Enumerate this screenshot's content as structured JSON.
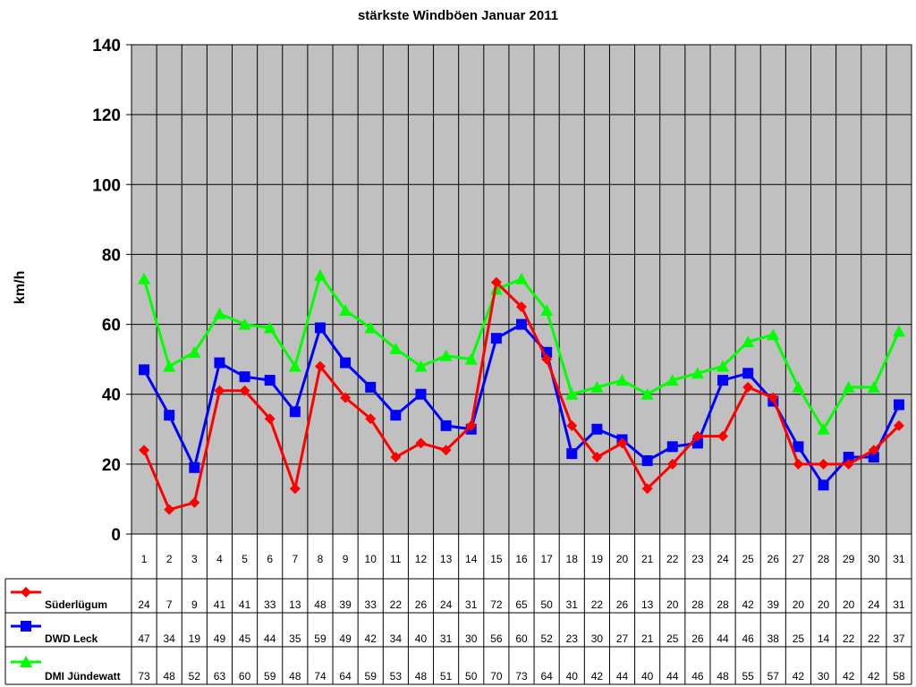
{
  "chart_data": {
    "type": "line",
    "title": "stärkste Windböen Januar 2011",
    "ylabel": "km/h",
    "xlabel": "",
    "ylim": [
      0,
      140
    ],
    "yticks": [
      0,
      20,
      40,
      60,
      80,
      100,
      120,
      140
    ],
    "grid": true,
    "legend": "bottom data table",
    "categories": [
      "1",
      "2",
      "3",
      "4",
      "5",
      "6",
      "7",
      "8",
      "9",
      "10",
      "11",
      "12",
      "13",
      "14",
      "15",
      "16",
      "17",
      "18",
      "19",
      "20",
      "21",
      "22",
      "23",
      "24",
      "25",
      "26",
      "27",
      "28",
      "29",
      "30",
      "31"
    ],
    "series": [
      {
        "name": "Süderlügum",
        "color": "#ff0000",
        "marker": "diamond",
        "values": [
          24,
          7,
          9,
          41,
          41,
          33,
          13,
          48,
          39,
          33,
          22,
          26,
          24,
          31,
          72,
          65,
          50,
          31,
          22,
          26,
          13,
          20,
          28,
          28,
          42,
          39,
          20,
          20,
          20,
          24,
          31
        ]
      },
      {
        "name": "DWD Leck",
        "color": "#0000ff",
        "marker": "square",
        "values": [
          47,
          34,
          19,
          49,
          45,
          44,
          35,
          59,
          49,
          42,
          34,
          40,
          31,
          30,
          56,
          60,
          52,
          23,
          30,
          27,
          21,
          25,
          26,
          44,
          46,
          38,
          25,
          14,
          22,
          22,
          37
        ]
      },
      {
        "name": "DMI Jündewatt",
        "color": "#00ff00",
        "marker": "triangle",
        "values": [
          73,
          48,
          52,
          63,
          60,
          59,
          48,
          74,
          64,
          59,
          53,
          48,
          51,
          50,
          70,
          73,
          64,
          40,
          42,
          44,
          40,
          44,
          46,
          48,
          55,
          57,
          42,
          30,
          42,
          42,
          58
        ]
      }
    ],
    "plot_background": "#c0c0c0"
  }
}
